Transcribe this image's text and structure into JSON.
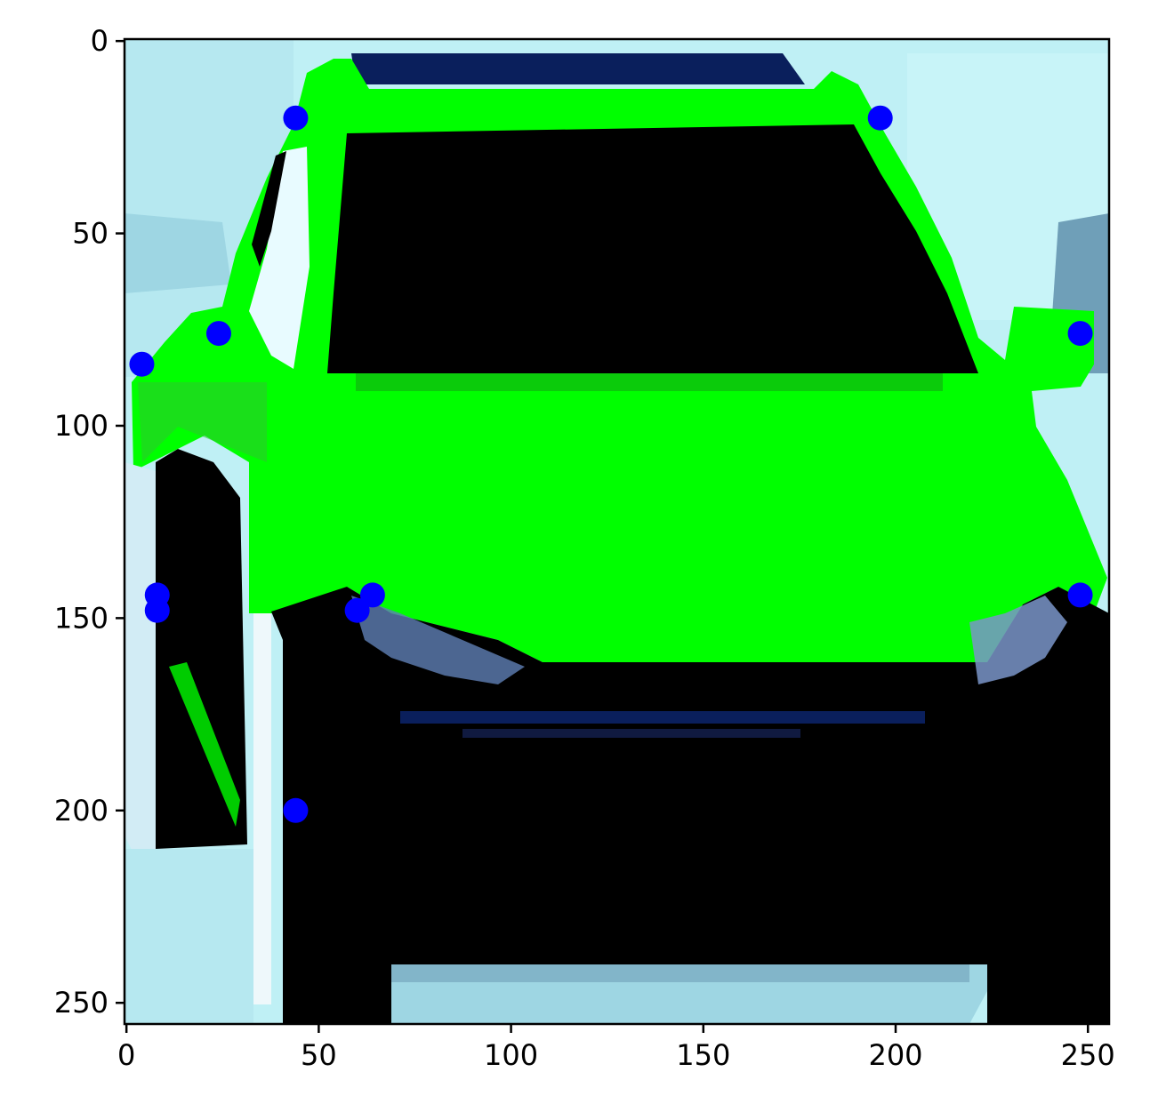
{
  "image": {
    "kind": "matplotlib imshow of a segmented car image with keypoints",
    "pixel_extent": {
      "width": 256,
      "height": 256
    },
    "colors": {
      "background_sky": "#bff0f5",
      "sky_shade": "#9ed6e3",
      "sky_dark": "#6f9fb8",
      "mask_green": "#00ff00",
      "dark_green": "#0b6b0b",
      "car_dark": "#000000",
      "navy": "#0a1f5c",
      "keypoint": "#0000ff"
    }
  },
  "axes": {
    "x_ticks": [
      {
        "value": 0,
        "label": "0"
      },
      {
        "value": 50,
        "label": "50"
      },
      {
        "value": 100,
        "label": "100"
      },
      {
        "value": 150,
        "label": "150"
      },
      {
        "value": 200,
        "label": "200"
      },
      {
        "value": 250,
        "label": "250"
      }
    ],
    "y_ticks": [
      {
        "value": 0,
        "label": "0"
      },
      {
        "value": 50,
        "label": "50"
      },
      {
        "value": 100,
        "label": "100"
      },
      {
        "value": 150,
        "label": "150"
      },
      {
        "value": 200,
        "label": "200"
      },
      {
        "value": 250,
        "label": "250"
      }
    ],
    "x_range": [
      -0.5,
      255.5
    ],
    "y_range": [
      255.5,
      -0.5
    ]
  },
  "keypoints": [
    {
      "x": 44,
      "y": 20
    },
    {
      "x": 196,
      "y": 20
    },
    {
      "x": 24,
      "y": 76
    },
    {
      "x": 248,
      "y": 76
    },
    {
      "x": 4,
      "y": 84
    },
    {
      "x": 8,
      "y": 144
    },
    {
      "x": 8,
      "y": 148
    },
    {
      "x": 64,
      "y": 144
    },
    {
      "x": 60,
      "y": 148
    },
    {
      "x": 248,
      "y": 144
    },
    {
      "x": 44,
      "y": 200
    }
  ]
}
